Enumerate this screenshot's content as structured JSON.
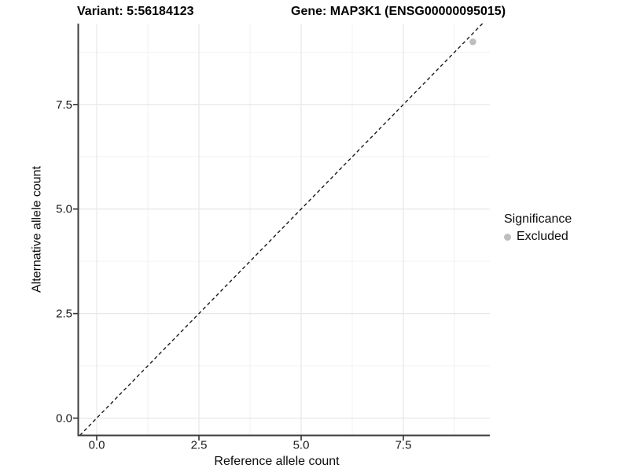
{
  "header": {
    "variant_title": "Variant: 5:56184123",
    "gene_title": "Gene: MAP3K1 (ENSG00000095015)"
  },
  "legend": {
    "title": "Significance",
    "items": [
      {
        "label": "Excluded",
        "color": "#bebebe"
      }
    ]
  },
  "colors": {
    "background": "#ffffff",
    "grid_major": "#e7e7e7",
    "grid_minor": "#f2f2f2",
    "axis_line": "#3c3c3c",
    "tick_mark": "#333333",
    "reference_line": "#1a1a1a",
    "point_excluded": "#bebebe",
    "text": "#0d0d0d"
  },
  "chart_data": {
    "type": "scatter",
    "title": "Variant: 5:56184123  |  Gene: MAP3K1 (ENSG00000095015)",
    "xlabel": "Reference allele count",
    "ylabel": "Alternative allele count",
    "xlim": [
      -0.452,
      9.615
    ],
    "ylim": [
      -0.414,
      9.435
    ],
    "x_ticks": [
      0.0,
      2.5,
      5.0,
      7.5
    ],
    "x_tick_labels": [
      "0.0",
      "2.5",
      "5.0",
      "7.5"
    ],
    "y_ticks": [
      0.0,
      2.5,
      5.0,
      7.5
    ],
    "y_tick_labels": [
      "0.0",
      "2.5",
      "5.0",
      "7.5"
    ],
    "x_minor_ticks": [
      1.25,
      3.75,
      6.25,
      8.75
    ],
    "y_minor_ticks": [
      1.25,
      3.75,
      6.25,
      8.75
    ],
    "grid": true,
    "legend_position": "right",
    "reference_line": {
      "kind": "identity",
      "slope": 1,
      "intercept": 0,
      "style": "dashed"
    },
    "series": [
      {
        "name": "Excluded",
        "color": "#bebebe",
        "points": [
          {
            "x": 9.2,
            "y": 9.0
          }
        ]
      }
    ]
  }
}
